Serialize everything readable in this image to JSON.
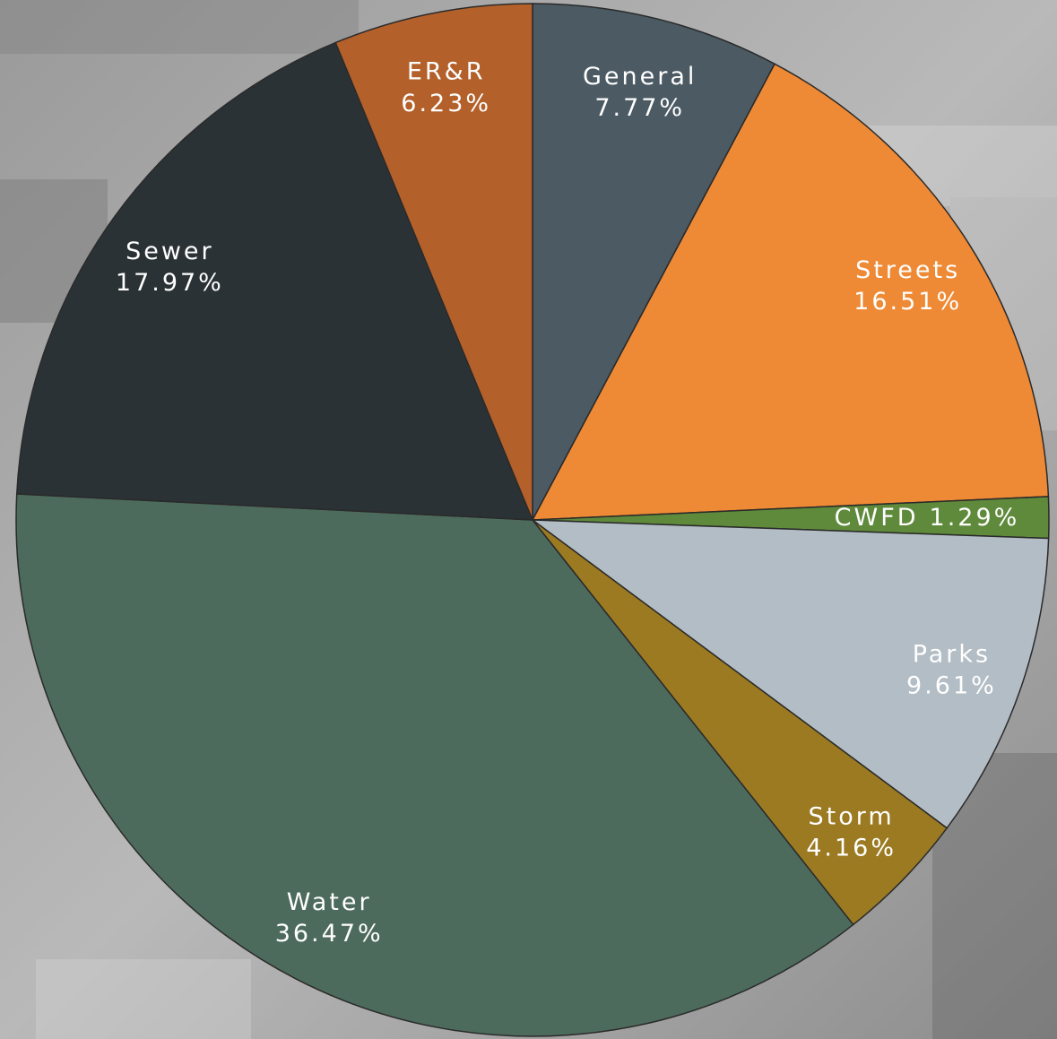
{
  "chart_data": {
    "type": "pie",
    "categories": [
      "General",
      "Streets",
      "CWFD",
      "Parks",
      "Storm",
      "Water",
      "Sewer",
      "ER&R"
    ],
    "values": [
      7.77,
      16.51,
      1.29,
      9.61,
      4.16,
      36.47,
      17.97,
      6.23
    ],
    "value_labels": [
      "7.77%",
      "16.51%",
      "1.29%",
      "9.61%",
      "4.16%",
      "36.47%",
      "17.97%",
      "6.23%"
    ],
    "colors": [
      "#4b5a63",
      "#ee8a35",
      "#5f8a3b",
      "#b3bdc5",
      "#9c7a22",
      "#4d6b5c",
      "#2b3236",
      "#b3602a"
    ]
  }
}
